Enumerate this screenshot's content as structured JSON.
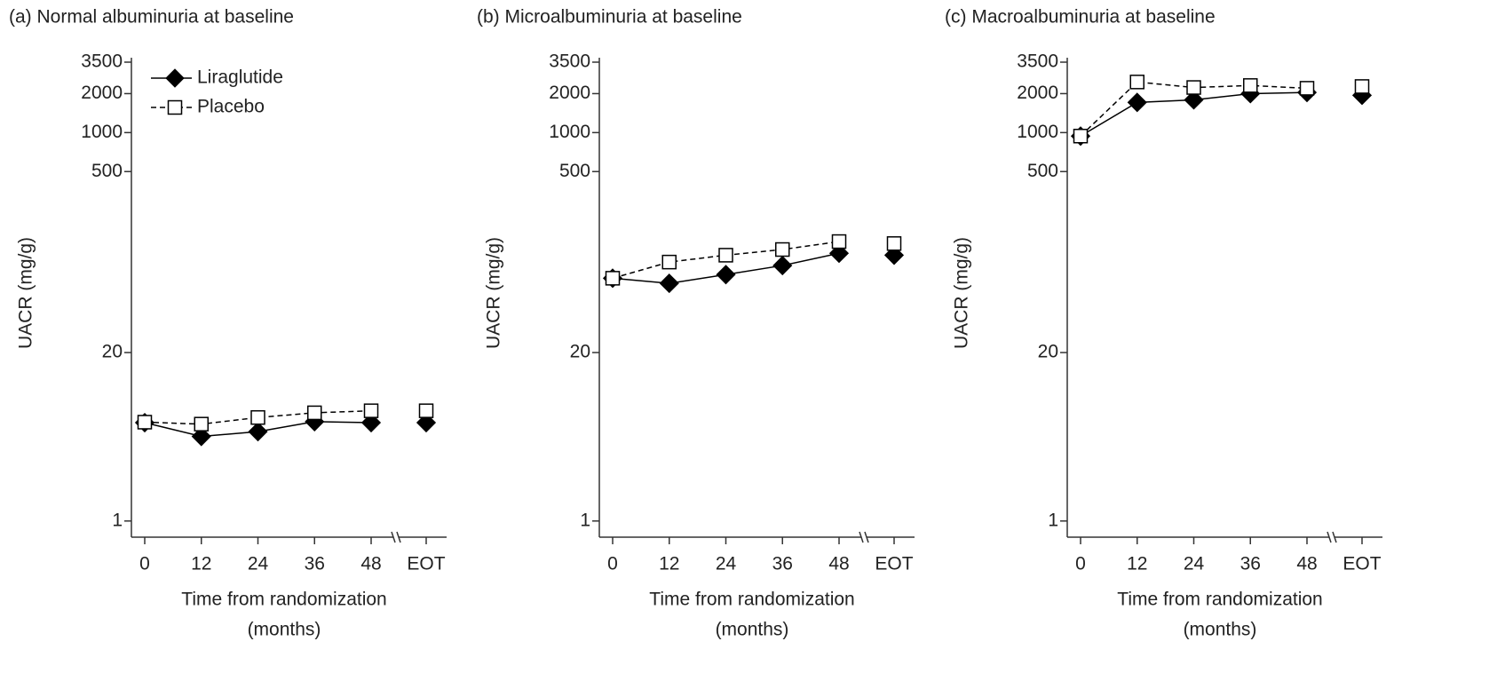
{
  "chart_data": [
    {
      "type": "line",
      "title": "(a) Normal albuminuria at baseline",
      "xlabel": [
        "Time from randomization",
        "(months)"
      ],
      "ylabel": "UACR (mg/g)",
      "categories": [
        "0",
        "12",
        "24",
        "36",
        "48",
        "EOT"
      ],
      "x_break": true,
      "log_scale": true,
      "legend": "upper left",
      "ylim": [
        0.75,
        3500
      ],
      "yticks": [
        1,
        20,
        500,
        1000,
        2000,
        3500
      ],
      "series": [
        {
          "name": "Liraglutide",
          "color": "#000000",
          "marker": "diamond",
          "marker_fill": "#000000",
          "dashed": false,
          "values": [
            5.75,
            4.5,
            4.9,
            5.85,
            5.75,
            5.75
          ]
        },
        {
          "name": "Placebo",
          "color": "#000000",
          "marker": "square",
          "marker_fill": "#ffffff",
          "dashed": true,
          "values": [
            5.8,
            5.6,
            6.3,
            6.85,
            7.1,
            7.1
          ]
        }
      ]
    },
    {
      "type": "line",
      "title": "(b) Microalbuminuria at baseline",
      "xlabel": [
        "Time from randomization",
        "(months)"
      ],
      "ylabel": "UACR (mg/g)",
      "categories": [
        "0",
        "12",
        "24",
        "36",
        "48",
        "EOT"
      ],
      "x_break": true,
      "log_scale": true,
      "ylim": [
        0.75,
        3500
      ],
      "yticks": [
        1,
        20,
        500,
        1000,
        2000,
        3500
      ],
      "series": [
        {
          "color": "#000000",
          "marker": "diamond",
          "marker_fill": "#000000",
          "dashed": false,
          "values": [
            75,
            68.5,
            80,
            94,
            117,
            113
          ]
        },
        {
          "color": "#000000",
          "marker": "square",
          "marker_fill": "#ffffff",
          "dashed": true,
          "values": [
            75,
            100,
            113,
            125,
            144,
            139
          ]
        }
      ]
    },
    {
      "type": "line",
      "title": "(c) Macroalbuminuria at baseline",
      "xlabel": [
        "Time from randomization",
        "(months)"
      ],
      "ylabel": "UACR (mg/g)",
      "categories": [
        "0",
        "12",
        "24",
        "36",
        "48",
        "EOT"
      ],
      "x_break": true,
      "log_scale": true,
      "ylim": [
        0.75,
        3500
      ],
      "yticks": [
        1,
        20,
        500,
        1000,
        2000,
        3500
      ],
      "series": [
        {
          "color": "#000000",
          "marker": "diamond",
          "marker_fill": "#000000",
          "dashed": false,
          "values": [
            940,
            1710,
            1790,
            2000,
            2040,
            1940
          ]
        },
        {
          "color": "#000000",
          "marker": "square",
          "marker_fill": "#ffffff",
          "dashed": true,
          "values": [
            940,
            2460,
            2230,
            2310,
            2200,
            2270
          ]
        }
      ]
    }
  ]
}
